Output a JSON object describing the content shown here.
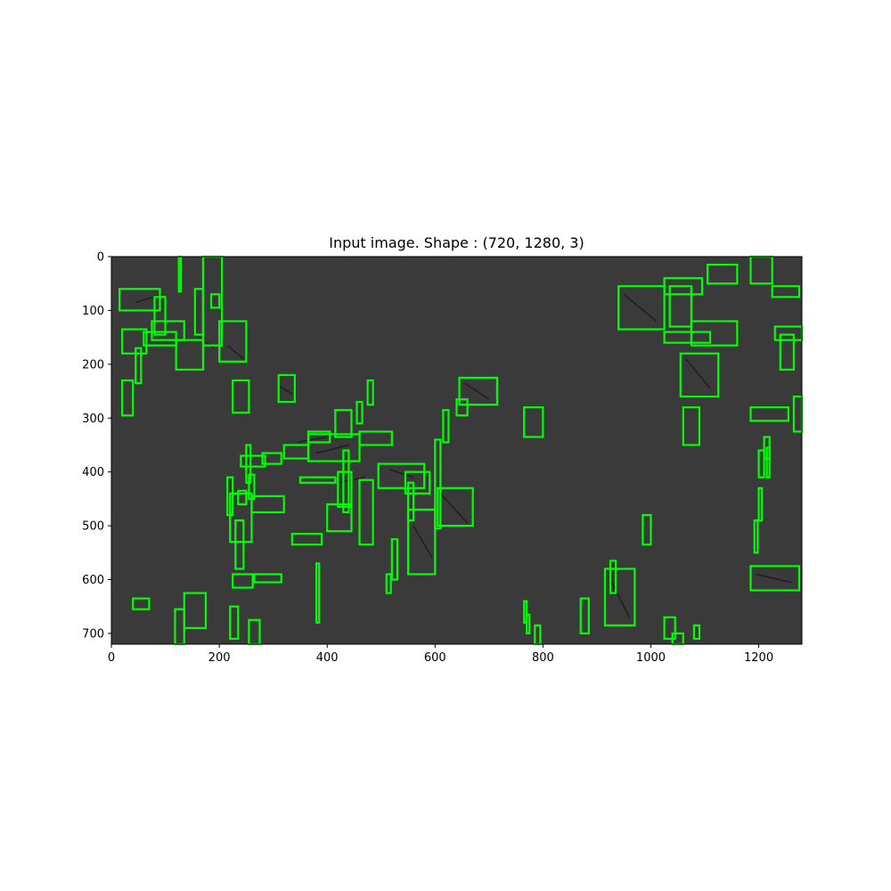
{
  "figure": {
    "title": "Input image. Shape : (720, 1280, 3)"
  },
  "image": {
    "width": 1280,
    "height": 720,
    "background_color": "#3a3a3a",
    "box_color": "#00ff00"
  },
  "axes": {
    "x_ticks": [
      0,
      200,
      400,
      600,
      800,
      1000,
      1200
    ],
    "y_ticks": [
      0,
      100,
      200,
      300,
      400,
      500,
      600,
      700
    ]
  },
  "detections": [
    [
      15,
      60,
      90,
      100
    ],
    [
      80,
      75,
      100,
      145
    ],
    [
      75,
      120,
      135,
      155
    ],
    [
      60,
      140,
      120,
      165
    ],
    [
      20,
      135,
      65,
      180
    ],
    [
      120,
      155,
      170,
      210
    ],
    [
      155,
      60,
      170,
      145
    ],
    [
      170,
      0,
      205,
      165
    ],
    [
      185,
      70,
      200,
      95
    ],
    [
      200,
      120,
      250,
      195
    ],
    [
      125,
      0,
      129,
      65
    ],
    [
      45,
      170,
      55,
      235
    ],
    [
      20,
      230,
      40,
      295
    ],
    [
      225,
      230,
      255,
      290
    ],
    [
      310,
      220,
      340,
      270
    ],
    [
      475,
      230,
      485,
      275
    ],
    [
      455,
      270,
      465,
      310
    ],
    [
      415,
      285,
      445,
      335
    ],
    [
      645,
      225,
      715,
      275
    ],
    [
      640,
      265,
      660,
      295
    ],
    [
      615,
      285,
      625,
      345
    ],
    [
      600,
      340,
      610,
      505
    ],
    [
      365,
      330,
      460,
      380
    ],
    [
      365,
      325,
      405,
      345
    ],
    [
      460,
      325,
      520,
      350
    ],
    [
      320,
      350,
      365,
      375
    ],
    [
      280,
      365,
      315,
      385
    ],
    [
      240,
      370,
      285,
      390
    ],
    [
      250,
      350,
      258,
      420
    ],
    [
      255,
      405,
      265,
      450
    ],
    [
      215,
      410,
      225,
      480
    ],
    [
      220,
      440,
      260,
      530
    ],
    [
      235,
      435,
      250,
      460
    ],
    [
      260,
      445,
      320,
      475
    ],
    [
      350,
      410,
      415,
      420
    ],
    [
      420,
      400,
      445,
      465
    ],
    [
      430,
      360,
      440,
      475
    ],
    [
      400,
      460,
      445,
      510
    ],
    [
      460,
      415,
      485,
      535
    ],
    [
      495,
      385,
      580,
      430
    ],
    [
      545,
      400,
      590,
      440
    ],
    [
      550,
      420,
      560,
      490
    ],
    [
      550,
      470,
      600,
      590
    ],
    [
      605,
      430,
      670,
      500
    ],
    [
      335,
      515,
      390,
      535
    ],
    [
      230,
      490,
      245,
      580
    ],
    [
      225,
      590,
      262,
      615
    ],
    [
      265,
      590,
      315,
      605
    ],
    [
      380,
      570,
      385,
      680
    ],
    [
      510,
      590,
      518,
      625
    ],
    [
      520,
      525,
      530,
      600
    ],
    [
      40,
      635,
      70,
      655
    ],
    [
      135,
      625,
      175,
      690
    ],
    [
      118,
      655,
      135,
      720
    ],
    [
      220,
      650,
      235,
      710
    ],
    [
      255,
      675,
      275,
      720
    ],
    [
      765,
      280,
      800,
      335
    ],
    [
      765,
      640,
      770,
      680
    ],
    [
      770,
      665,
      775,
      700
    ],
    [
      785,
      685,
      795,
      720
    ],
    [
      870,
      635,
      885,
      700
    ],
    [
      915,
      580,
      970,
      685
    ],
    [
      925,
      565,
      935,
      625
    ],
    [
      985,
      480,
      1000,
      535
    ],
    [
      940,
      55,
      1025,
      135
    ],
    [
      1025,
      40,
      1095,
      70
    ],
    [
      1035,
      55,
      1075,
      130
    ],
    [
      1025,
      140,
      1110,
      160
    ],
    [
      1075,
      120,
      1160,
      165
    ],
    [
      1105,
      15,
      1160,
      50
    ],
    [
      1185,
      0,
      1225,
      50
    ],
    [
      1225,
      55,
      1275,
      75
    ],
    [
      1230,
      130,
      1280,
      155
    ],
    [
      1240,
      145,
      1265,
      210
    ],
    [
      1055,
      180,
      1125,
      260
    ],
    [
      1060,
      280,
      1090,
      350
    ],
    [
      1185,
      280,
      1255,
      305
    ],
    [
      1265,
      260,
      1280,
      325
    ],
    [
      1200,
      360,
      1210,
      410
    ],
    [
      1210,
      335,
      1220,
      375
    ],
    [
      1215,
      355,
      1220,
      410
    ],
    [
      1200,
      430,
      1206,
      490
    ],
    [
      1192,
      490,
      1198,
      550
    ],
    [
      1185,
      575,
      1275,
      620
    ],
    [
      1025,
      670,
      1045,
      710
    ],
    [
      1040,
      700,
      1060,
      720
    ],
    [
      1080,
      685,
      1090,
      710
    ]
  ]
}
